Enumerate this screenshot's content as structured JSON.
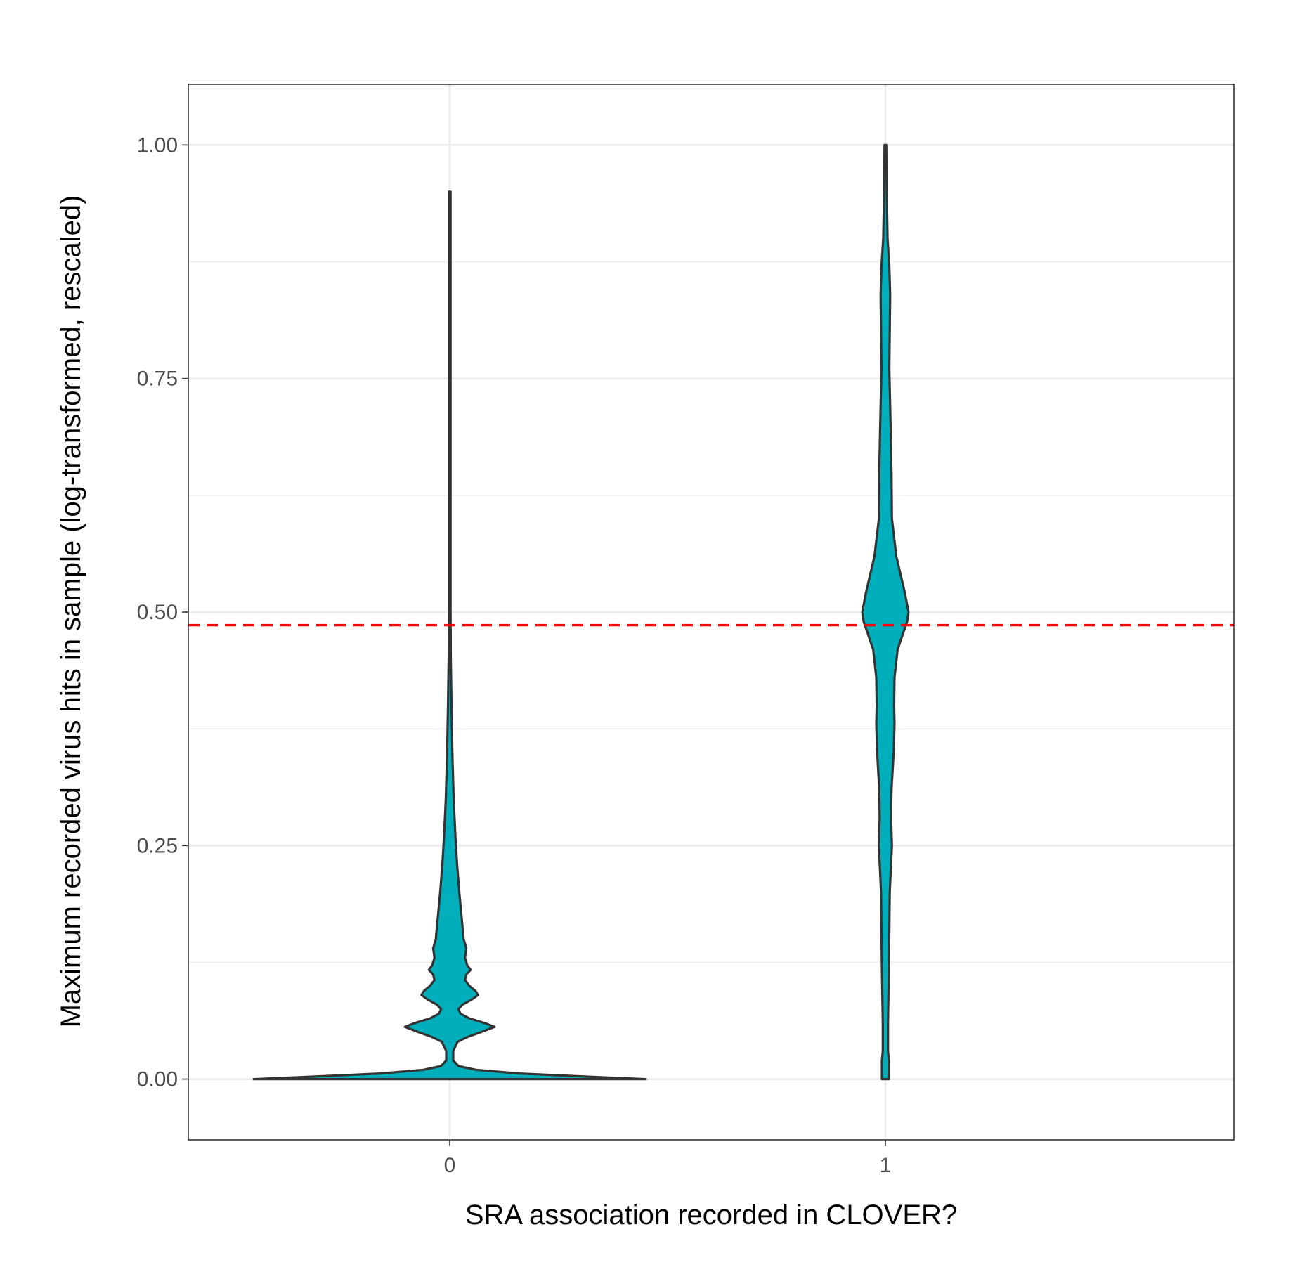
{
  "chart_data": {
    "type": "violin",
    "title": "",
    "xlabel": "SRA association recorded in CLOVER?",
    "ylabel": "Maximum recorded virus hits in sample (log-transformed, rescaled)",
    "categories": [
      "0",
      "1"
    ],
    "ylim": [
      -0.065,
      1.065
    ],
    "yticks": [
      0.0,
      0.25,
      0.5,
      0.75,
      1.0
    ],
    "ytick_labels": [
      "0.00",
      "0.25",
      "0.50",
      "0.75",
      "1.00"
    ],
    "y_minor_gridlines": [
      0.125,
      0.375,
      0.625,
      0.875
    ],
    "grid": true,
    "fill_color": "#00AFBB",
    "outline_color": "#333333",
    "reference_line": {
      "y": 0.486,
      "color": "#ff0000",
      "style": "dashed"
    },
    "violins": [
      {
        "category": "0",
        "y_range": [
          0.0,
          0.95
        ],
        "density_profile": [
          [
            0.0,
            0.45
          ],
          [
            0.003,
            0.3
          ],
          [
            0.006,
            0.16
          ],
          [
            0.01,
            0.06
          ],
          [
            0.014,
            0.02
          ],
          [
            0.02,
            0.008
          ],
          [
            0.03,
            0.008
          ],
          [
            0.04,
            0.018
          ],
          [
            0.045,
            0.04
          ],
          [
            0.05,
            0.07
          ],
          [
            0.056,
            0.103
          ],
          [
            0.06,
            0.08
          ],
          [
            0.065,
            0.045
          ],
          [
            0.07,
            0.025
          ],
          [
            0.075,
            0.02
          ],
          [
            0.08,
            0.03
          ],
          [
            0.085,
            0.05
          ],
          [
            0.09,
            0.065
          ],
          [
            0.094,
            0.06
          ],
          [
            0.1,
            0.045
          ],
          [
            0.106,
            0.035
          ],
          [
            0.112,
            0.038
          ],
          [
            0.117,
            0.048
          ],
          [
            0.122,
            0.04
          ],
          [
            0.13,
            0.035
          ],
          [
            0.14,
            0.038
          ],
          [
            0.15,
            0.032
          ],
          [
            0.16,
            0.03
          ],
          [
            0.18,
            0.026
          ],
          [
            0.2,
            0.022
          ],
          [
            0.23,
            0.017
          ],
          [
            0.26,
            0.013
          ],
          [
            0.3,
            0.009
          ],
          [
            0.35,
            0.006
          ],
          [
            0.4,
            0.004
          ],
          [
            0.45,
            0.0025
          ],
          [
            0.5,
            0.0013
          ],
          [
            0.55,
            0.0008
          ],
          [
            0.65,
            0.0004
          ],
          [
            0.8,
            0.0002
          ],
          [
            0.95,
            0.0
          ]
        ]
      },
      {
        "category": "1",
        "y_range": [
          0.0,
          1.0
        ],
        "density_profile": [
          [
            0.0,
            0.008
          ],
          [
            0.02,
            0.008
          ],
          [
            0.03,
            0.006
          ],
          [
            0.06,
            0.006
          ],
          [
            0.12,
            0.008
          ],
          [
            0.2,
            0.01
          ],
          [
            0.25,
            0.015
          ],
          [
            0.28,
            0.013
          ],
          [
            0.31,
            0.014
          ],
          [
            0.35,
            0.019
          ],
          [
            0.38,
            0.021
          ],
          [
            0.4,
            0.02
          ],
          [
            0.43,
            0.021
          ],
          [
            0.46,
            0.028
          ],
          [
            0.49,
            0.05
          ],
          [
            0.5,
            0.053
          ],
          [
            0.52,
            0.045
          ],
          [
            0.56,
            0.025
          ],
          [
            0.6,
            0.015
          ],
          [
            0.65,
            0.014
          ],
          [
            0.7,
            0.012
          ],
          [
            0.76,
            0.009
          ],
          [
            0.8,
            0.01
          ],
          [
            0.84,
            0.011
          ],
          [
            0.87,
            0.009
          ],
          [
            0.9,
            0.005
          ],
          [
            0.95,
            0.003
          ],
          [
            1.0,
            0.0015
          ]
        ]
      }
    ]
  }
}
